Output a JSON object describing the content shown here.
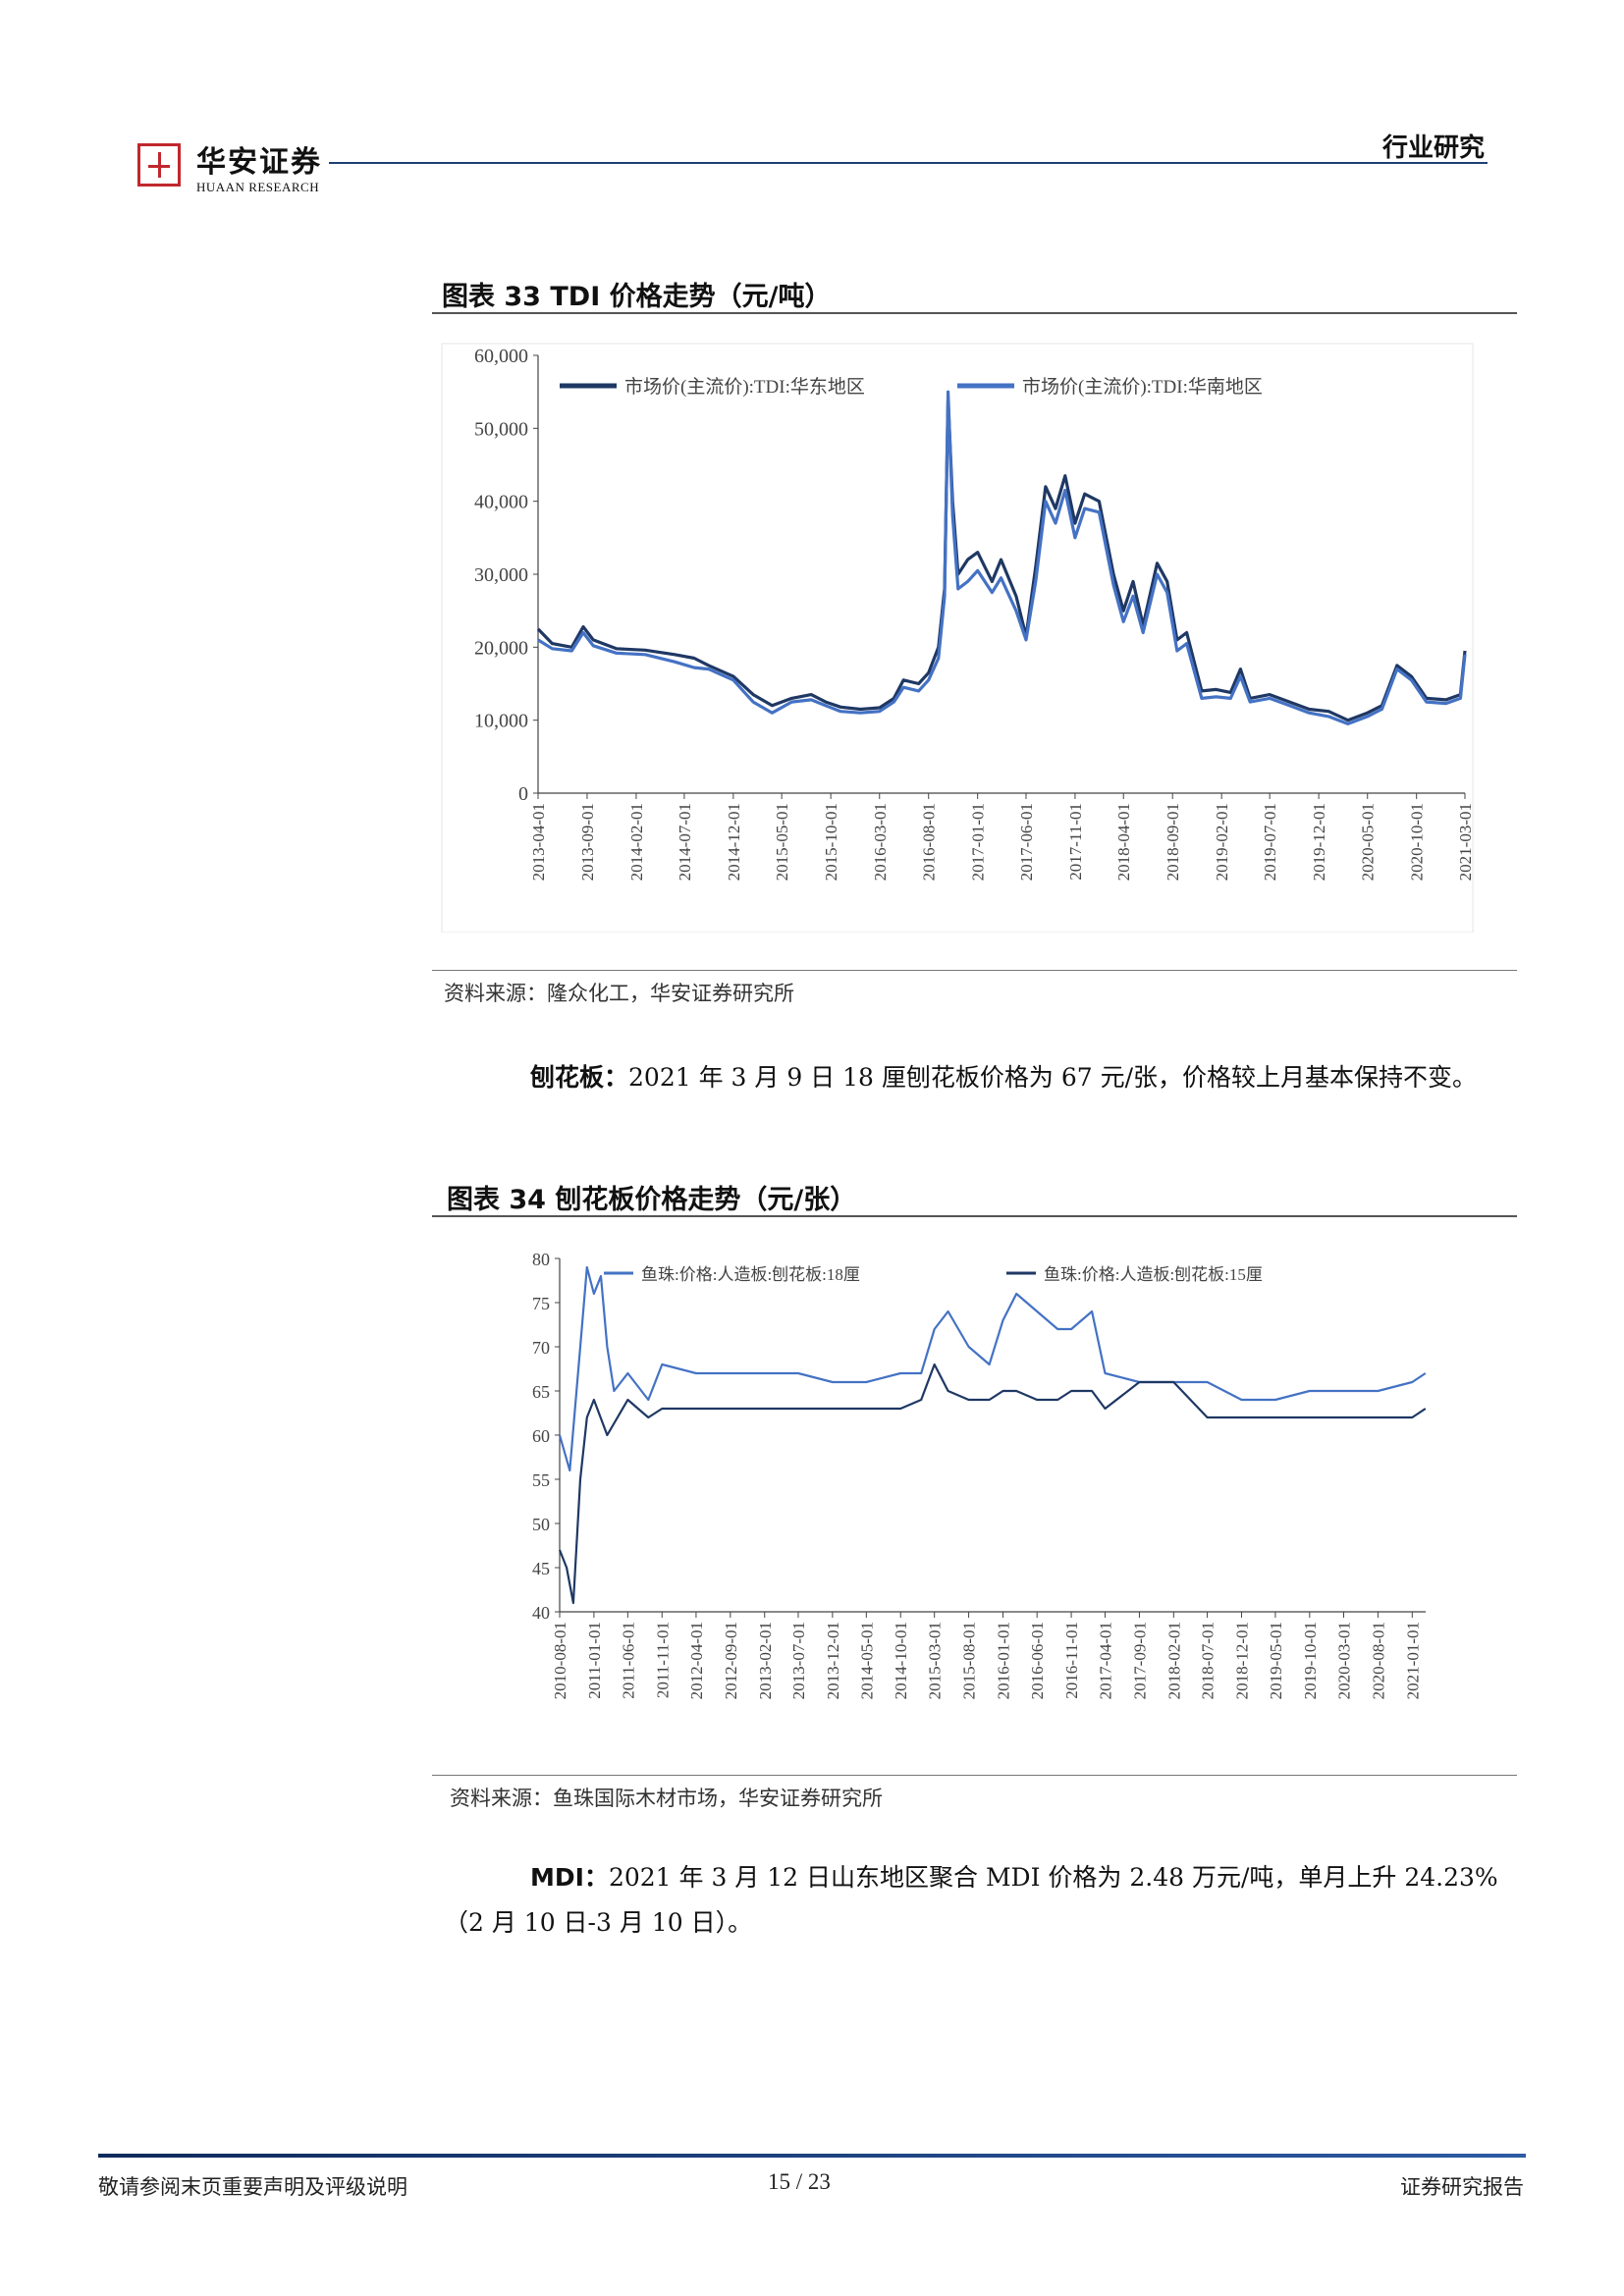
{
  "header": {
    "logo_cn": "华安证券",
    "logo_en": "HUAAN RESEARCH",
    "section_tag": "行业研究"
  },
  "figure33": {
    "title": "图表 33 TDI 价格走势（元/吨）",
    "source": "资料来源：隆众化工，华安证券研究所"
  },
  "figure34": {
    "title": "图表 34 刨花板价格走势（元/张）",
    "source": "资料来源：鱼珠国际木材市场，华安证券研究所"
  },
  "para1": {
    "lead": "刨花板：",
    "text": "2021 年 3 月 9 日 18 厘刨花板价格为 67 元/张，价格较上月基本保持不变。"
  },
  "para2": {
    "lead": "MDI：",
    "line1": "2021 年 3 月 12 日山东地区聚合 MDI 价格为 2.48 万元/吨，单月上升 24.23%",
    "line2": "（2 月 10 日-3 月 10 日）。"
  },
  "footer": {
    "left": "敬请参阅末页重要声明及评级说明",
    "page": "15 / 23",
    "right": "证券研究报告"
  },
  "chart_data": [
    {
      "type": "line",
      "title": "",
      "ylim": [
        0,
        60000
      ],
      "yticks": [
        "60,000",
        "50,000",
        "40,000",
        "30,000",
        "20,000",
        "10,000",
        "0"
      ],
      "x_tick_labels": [
        "2013-04-01",
        "2013-09-01",
        "2014-02-01",
        "2014-07-01",
        "2014-12-01",
        "2015-05-01",
        "2015-10-01",
        "2016-03-01",
        "2016-08-01",
        "2017-01-01",
        "2017-06-01",
        "2017-11-01",
        "2018-04-01",
        "2018-09-01",
        "2019-02-01",
        "2019-07-01",
        "2019-12-01",
        "2020-05-01",
        "2020-10-01",
        "2021-03-01"
      ],
      "legend_position": "top-left",
      "grid": false,
      "series": [
        {
          "name": "市场价(主流价):TDI:华东地区",
          "color": "#1f3864",
          "points": [
            [
              "2013-04-01",
              22500
            ],
            [
              "2013-05-15",
              20500
            ],
            [
              "2013-07-15",
              20000
            ],
            [
              "2013-08-20",
              22800
            ],
            [
              "2013-09-20",
              21000
            ],
            [
              "2013-12-01",
              19800
            ],
            [
              "2014-03-01",
              19600
            ],
            [
              "2014-06-01",
              19000
            ],
            [
              "2014-08-01",
              18500
            ],
            [
              "2014-09-15",
              17500
            ],
            [
              "2014-12-01",
              16000
            ],
            [
              "2015-02-01",
              13500
            ],
            [
              "2015-04-01",
              12000
            ],
            [
              "2015-06-01",
              13000
            ],
            [
              "2015-08-01",
              13500
            ],
            [
              "2015-09-15",
              12500
            ],
            [
              "2015-11-01",
              11800
            ],
            [
              "2016-01-01",
              11500
            ],
            [
              "2016-03-01",
              11700
            ],
            [
              "2016-04-15",
              13000
            ],
            [
              "2016-05-15",
              15500
            ],
            [
              "2016-07-01",
              15000
            ],
            [
              "2016-08-01",
              16500
            ],
            [
              "2016-09-01",
              20000
            ],
            [
              "2016-09-20",
              28000
            ],
            [
              "2016-10-01",
              54000
            ],
            [
              "2016-10-15",
              40000
            ],
            [
              "2016-11-01",
              30000
            ],
            [
              "2016-12-01",
              32000
            ],
            [
              "2017-01-01",
              33000
            ],
            [
              "2017-02-15",
              29000
            ],
            [
              "2017-03-15",
              32000
            ],
            [
              "2017-05-01",
              27000
            ],
            [
              "2017-06-01",
              21500
            ],
            [
              "2017-07-01",
              31000
            ],
            [
              "2017-08-01",
              42000
            ],
            [
              "2017-09-01",
              39000
            ],
            [
              "2017-10-01",
              43500
            ],
            [
              "2017-11-01",
              37000
            ],
            [
              "2017-12-01",
              41000
            ],
            [
              "2018-01-15",
              40000
            ],
            [
              "2018-03-01",
              30000
            ],
            [
              "2018-04-01",
              25000
            ],
            [
              "2018-05-01",
              29000
            ],
            [
              "2018-06-01",
              23000
            ],
            [
              "2018-07-15",
              31500
            ],
            [
              "2018-08-15",
              29000
            ],
            [
              "2018-09-15",
              21000
            ],
            [
              "2018-10-15",
              22000
            ],
            [
              "2018-12-01",
              14000
            ],
            [
              "2019-01-15",
              14200
            ],
            [
              "2019-03-01",
              13800
            ],
            [
              "2019-04-01",
              17000
            ],
            [
              "2019-05-01",
              13000
            ],
            [
              "2019-07-01",
              13500
            ],
            [
              "2019-09-01",
              12500
            ],
            [
              "2019-11-01",
              11500
            ],
            [
              "2020-01-01",
              11200
            ],
            [
              "2020-03-01",
              10000
            ],
            [
              "2020-05-01",
              11000
            ],
            [
              "2020-06-15",
              12000
            ],
            [
              "2020-08-01",
              17500
            ],
            [
              "2020-09-15",
              16000
            ],
            [
              "2020-11-01",
              13000
            ],
            [
              "2021-01-01",
              12800
            ],
            [
              "2021-02-15",
              13500
            ],
            [
              "2021-03-01",
              19500
            ]
          ]
        },
        {
          "name": "市场价(主流价):TDI:华南地区",
          "color": "#4472c4",
          "points": [
            [
              "2013-04-01",
              21000
            ],
            [
              "2013-05-15",
              19800
            ],
            [
              "2013-07-15",
              19500
            ],
            [
              "2013-08-20",
              22000
            ],
            [
              "2013-09-20",
              20200
            ],
            [
              "2013-12-01",
              19200
            ],
            [
              "2014-03-01",
              19000
            ],
            [
              "2014-06-01",
              18000
            ],
            [
              "2014-08-01",
              17200
            ],
            [
              "2014-09-15",
              17000
            ],
            [
              "2014-12-01",
              15500
            ],
            [
              "2015-02-01",
              12500
            ],
            [
              "2015-04-01",
              11000
            ],
            [
              "2015-06-01",
              12500
            ],
            [
              "2015-08-01",
              12800
            ],
            [
              "2015-09-15",
              12000
            ],
            [
              "2015-11-01",
              11200
            ],
            [
              "2016-01-01",
              11000
            ],
            [
              "2016-03-01",
              11200
            ],
            [
              "2016-04-15",
              12500
            ],
            [
              "2016-05-15",
              14500
            ],
            [
              "2016-07-01",
              14000
            ],
            [
              "2016-08-01",
              15500
            ],
            [
              "2016-09-01",
              18500
            ],
            [
              "2016-09-20",
              27000
            ],
            [
              "2016-10-01",
              55000
            ],
            [
              "2016-10-15",
              38000
            ],
            [
              "2016-11-01",
              28000
            ],
            [
              "2016-12-01",
              29000
            ],
            [
              "2017-01-01",
              30500
            ],
            [
              "2017-02-15",
              27500
            ],
            [
              "2017-03-15",
              29500
            ],
            [
              "2017-05-01",
              25000
            ],
            [
              "2017-06-01",
              21000
            ],
            [
              "2017-07-01",
              29000
            ],
            [
              "2017-08-01",
              40000
            ],
            [
              "2017-09-01",
              37000
            ],
            [
              "2017-10-01",
              41500
            ],
            [
              "2017-11-01",
              35000
            ],
            [
              "2017-12-01",
              39000
            ],
            [
              "2018-01-15",
              38500
            ],
            [
              "2018-03-01",
              28500
            ],
            [
              "2018-04-01",
              23500
            ],
            [
              "2018-05-01",
              27000
            ],
            [
              "2018-06-01",
              22000
            ],
            [
              "2018-07-15",
              30000
            ],
            [
              "2018-08-15",
              27500
            ],
            [
              "2018-09-15",
              19500
            ],
            [
              "2018-10-15",
              20500
            ],
            [
              "2018-12-01",
              13000
            ],
            [
              "2019-01-15",
              13200
            ],
            [
              "2019-03-01",
              13000
            ],
            [
              "2019-04-01",
              16000
            ],
            [
              "2019-05-01",
              12500
            ],
            [
              "2019-07-01",
              13000
            ],
            [
              "2019-09-01",
              12000
            ],
            [
              "2019-11-01",
              11000
            ],
            [
              "2020-01-01",
              10500
            ],
            [
              "2020-03-01",
              9500
            ],
            [
              "2020-05-01",
              10500
            ],
            [
              "2020-06-15",
              11500
            ],
            [
              "2020-08-01",
              17000
            ],
            [
              "2020-09-15",
              15500
            ],
            [
              "2020-11-01",
              12500
            ],
            [
              "2021-01-01",
              12300
            ],
            [
              "2021-02-15",
              13000
            ],
            [
              "2021-03-01",
              19000
            ]
          ]
        }
      ]
    },
    {
      "type": "line",
      "title": "",
      "ylim": [
        40,
        80
      ],
      "yticks": [
        "80",
        "75",
        "70",
        "65",
        "60",
        "55",
        "50",
        "45",
        "40"
      ],
      "x_tick_labels": [
        "2010-08-01",
        "2011-01-01",
        "2011-06-01",
        "2011-11-01",
        "2012-04-01",
        "2012-09-01",
        "2013-02-01",
        "2013-07-01",
        "2013-12-01",
        "2014-05-01",
        "2014-10-01",
        "2015-03-01",
        "2015-08-01",
        "2016-01-01",
        "2016-06-01",
        "2016-11-01",
        "2017-04-01",
        "2017-09-01",
        "2018-02-01",
        "2018-07-01",
        "2018-12-01",
        "2019-05-01",
        "2019-10-01",
        "2020-03-01",
        "2020-08-01",
        "2021-01-01"
      ],
      "legend_position": "top",
      "grid": false,
      "series": [
        {
          "name": "鱼珠:价格:人造板:刨花板:18厘",
          "color": "#4472c4",
          "points": [
            [
              "2010-08-01",
              60
            ],
            [
              "2010-09-15",
              56
            ],
            [
              "2010-11-01",
              70
            ],
            [
              "2010-12-01",
              79
            ],
            [
              "2011-01-01",
              76
            ],
            [
              "2011-02-01",
              78
            ],
            [
              "2011-03-01",
              70
            ],
            [
              "2011-04-01",
              65
            ],
            [
              "2011-06-01",
              67
            ],
            [
              "2011-09-01",
              64
            ],
            [
              "2011-11-01",
              68
            ],
            [
              "2012-04-01",
              67
            ],
            [
              "2012-09-01",
              67
            ],
            [
              "2013-02-01",
              67
            ],
            [
              "2013-07-01",
              67
            ],
            [
              "2013-12-01",
              66
            ],
            [
              "2014-05-01",
              66
            ],
            [
              "2014-10-01",
              67
            ],
            [
              "2015-01-01",
              67
            ],
            [
              "2015-03-01",
              72
            ],
            [
              "2015-05-01",
              74
            ],
            [
              "2015-08-01",
              70
            ],
            [
              "2015-11-01",
              68
            ],
            [
              "2016-01-01",
              73
            ],
            [
              "2016-03-01",
              76
            ],
            [
              "2016-06-01",
              74
            ],
            [
              "2016-09-01",
              72
            ],
            [
              "2016-11-01",
              72
            ],
            [
              "2017-02-01",
              74
            ],
            [
              "2017-04-01",
              67
            ],
            [
              "2017-09-01",
              66
            ],
            [
              "2018-02-01",
              66
            ],
            [
              "2018-07-01",
              66
            ],
            [
              "2018-12-01",
              64
            ],
            [
              "2019-05-01",
              64
            ],
            [
              "2019-10-01",
              65
            ],
            [
              "2020-03-01",
              65
            ],
            [
              "2020-08-01",
              65
            ],
            [
              "2021-01-01",
              66
            ],
            [
              "2021-03-01",
              67
            ]
          ]
        },
        {
          "name": "鱼珠:价格:人造板:刨花板:15厘",
          "color": "#1f3864",
          "points": [
            [
              "2010-08-01",
              47
            ],
            [
              "2010-09-01",
              45
            ],
            [
              "2010-10-01",
              41
            ],
            [
              "2010-11-01",
              55
            ],
            [
              "2010-12-01",
              62
            ],
            [
              "2011-01-01",
              64
            ],
            [
              "2011-03-01",
              60
            ],
            [
              "2011-06-01",
              64
            ],
            [
              "2011-09-01",
              62
            ],
            [
              "2011-11-01",
              63
            ],
            [
              "2012-04-01",
              63
            ],
            [
              "2012-09-01",
              63
            ],
            [
              "2013-02-01",
              63
            ],
            [
              "2013-07-01",
              63
            ],
            [
              "2013-12-01",
              63
            ],
            [
              "2014-05-01",
              63
            ],
            [
              "2014-10-01",
              63
            ],
            [
              "2015-01-01",
              64
            ],
            [
              "2015-03-01",
              68
            ],
            [
              "2015-05-01",
              65
            ],
            [
              "2015-08-01",
              64
            ],
            [
              "2015-11-01",
              64
            ],
            [
              "2016-01-01",
              65
            ],
            [
              "2016-03-01",
              65
            ],
            [
              "2016-06-01",
              64
            ],
            [
              "2016-09-01",
              64
            ],
            [
              "2016-11-01",
              65
            ],
            [
              "2017-02-01",
              65
            ],
            [
              "2017-04-01",
              63
            ],
            [
              "2017-09-01",
              66
            ],
            [
              "2018-02-01",
              66
            ],
            [
              "2018-07-01",
              62
            ],
            [
              "2018-12-01",
              62
            ],
            [
              "2019-05-01",
              62
            ],
            [
              "2019-10-01",
              62
            ],
            [
              "2020-03-01",
              62
            ],
            [
              "2020-08-01",
              62
            ],
            [
              "2021-01-01",
              62
            ],
            [
              "2021-03-01",
              63
            ]
          ]
        }
      ]
    }
  ]
}
